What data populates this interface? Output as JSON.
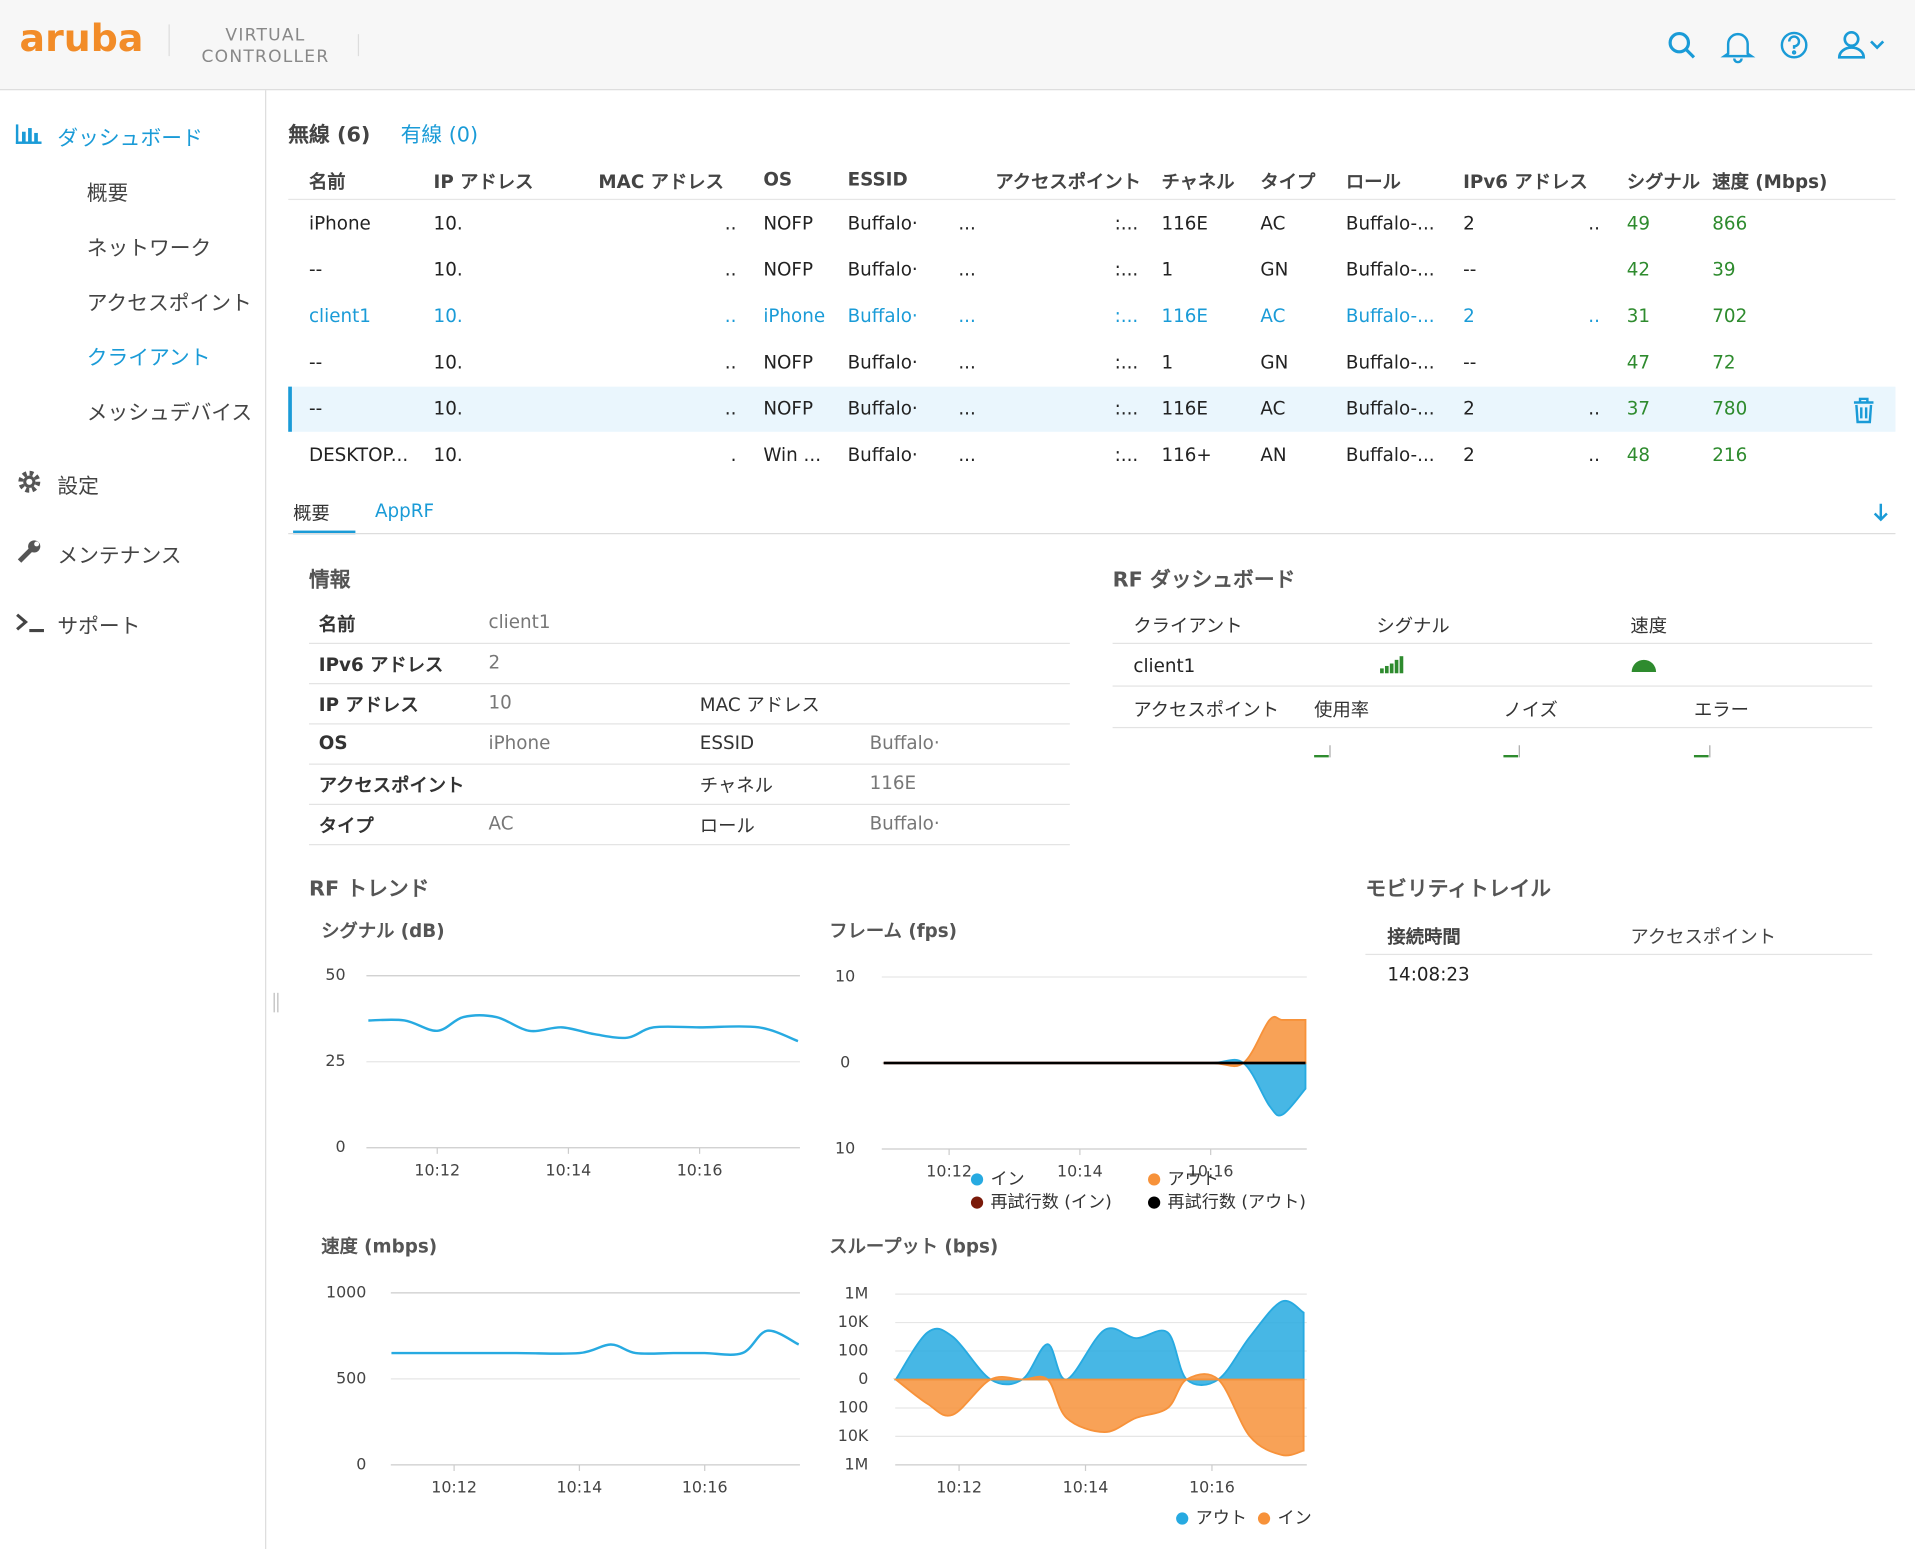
{
  "header": {
    "logo": "aruba",
    "product": [
      "VIRTUAL",
      "CONTROLLER"
    ]
  },
  "sidebar": {
    "dashboard": "ダッシュボード",
    "sub": [
      "概要",
      "ネットワーク",
      "アクセスポイント",
      "クライアント",
      "メッシュデバイス"
    ],
    "active_sub": 3,
    "others": [
      "設定",
      "メンテナンス",
      "サポート"
    ]
  },
  "tabs": [
    "無線 (6)",
    "有線 (0)"
  ],
  "table": {
    "columns": [
      "名前",
      "IP アドレス",
      "MAC アドレス",
      "OS",
      "ESSID",
      "アクセスポイント",
      "チャネル",
      "タイプ",
      "ロール",
      "IPv6 アドレス",
      "シグナル",
      "速度 (Mbps)"
    ],
    "selected_row": 2,
    "rows": [
      [
        "iPhone",
        "10.",
        "..",
        "NOFP",
        [
          "Buffalo·",
          "..."
        ],
        ":...",
        "116E",
        "AC",
        "Buffalo-...",
        [
          "2",
          ".."
        ],
        "49",
        "866"
      ],
      [
        "--",
        "10.",
        "..",
        "NOFP",
        [
          "Buffalo·",
          "..."
        ],
        ":...",
        "1",
        "GN",
        "Buffalo-...",
        "--",
        "42",
        "39"
      ],
      [
        "client1",
        "10.",
        "..",
        "iPhone",
        [
          "Buffalo·",
          "..."
        ],
        ":...",
        "116E",
        "AC",
        "Buffalo-...",
        [
          "2",
          ".."
        ],
        "31",
        "702"
      ],
      [
        "--",
        "10.",
        "..",
        "NOFP",
        [
          "Buffalo·",
          "..."
        ],
        ":...",
        "1",
        "GN",
        "Buffalo-...",
        "--",
        "47",
        "72"
      ],
      [
        "--",
        "10.",
        "..",
        "NOFP",
        [
          "Buffalo·",
          "..."
        ],
        ":...",
        "116E",
        "AC",
        "Buffalo-...",
        [
          "2",
          ".."
        ],
        "37",
        "780"
      ],
      [
        "DESKTOP...",
        "10.",
        ".",
        "Win ...",
        [
          "Buffalo·",
          "..."
        ],
        ":...",
        "116+",
        "AN",
        "Buffalo-...",
        [
          "2",
          ".."
        ],
        "48",
        "216"
      ]
    ]
  },
  "subtabs": [
    "概要",
    "AppRF"
  ],
  "info": {
    "title": "情報",
    "rows": [
      [
        {
          "label": "名前",
          "value": "client1"
        }
      ],
      [
        {
          "label": "IPv6 アドレス",
          "value": "2"
        }
      ],
      [
        {
          "label": "IP アドレス",
          "value": "10"
        },
        {
          "label": "MAC アドレス"
        }
      ],
      [
        {
          "label": "OS",
          "value": "iPhone"
        },
        {
          "label": "ESSID",
          "value": "Buffalo·"
        }
      ],
      [
        {
          "label": "アクセスポイント"
        },
        {
          "label": "チャネル",
          "value": "116E"
        }
      ],
      [
        {
          "label": "タイプ",
          "value": "AC"
        },
        {
          "label": "ロール",
          "value": "Buffalo·"
        }
      ]
    ]
  },
  "rf_dashboard": {
    "title": "RF ダッシュボード",
    "headers": [
      "クライアント",
      "シグナル",
      "速度"
    ],
    "client": "client1",
    "ap_headers": [
      "アクセスポイント",
      "使用率",
      "ノイズ",
      "エラー"
    ]
  },
  "rf_trend": {
    "title": "RF トレンド"
  },
  "mobility": {
    "title": "モビリティトレイル",
    "headers": [
      "接続時間",
      "アクセスポイント"
    ],
    "rows": [
      [
        "14:08:23"
      ]
    ]
  },
  "chart_data": [
    {
      "type": "line",
      "title": "シグナル (dB)",
      "x": [
        10.95,
        11.5,
        12.0,
        12.4,
        12.9,
        13.4,
        13.9,
        14.4,
        14.9,
        15.3,
        16.0,
        16.9,
        17.5
      ],
      "series": [
        {
          "color": "#27aae1",
          "values": [
            37,
            37,
            34,
            38,
            38,
            34,
            35,
            33,
            32,
            35,
            35,
            35,
            31
          ]
        }
      ],
      "xlim": [
        10.92,
        17.53
      ],
      "xticks": [
        {
          "value": 12,
          "label": "10:12"
        },
        {
          "value": 14,
          "label": "10:14"
        },
        {
          "value": 16,
          "label": "10:16"
        }
      ],
      "ylim": [
        0,
        50
      ],
      "yticks": [
        0,
        25,
        50
      ],
      "grid": true
    },
    {
      "type": "area",
      "title": "フレーム (fps)",
      "x": [
        11.0,
        12.0,
        13.0,
        14.0,
        15.0,
        16.0,
        16.5,
        16.9,
        17.1,
        17.45
      ],
      "series": [
        {
          "name": "イン",
          "color": "#27aae1",
          "values": [
            0,
            0,
            0,
            0,
            0,
            0,
            0,
            -5,
            -6,
            -3
          ]
        },
        {
          "name": "アウト",
          "color": "#f7923a",
          "values": [
            0,
            0,
            0,
            0,
            0,
            0,
            0,
            5,
            5,
            5
          ]
        },
        {
          "name": "再試行数 (イン)",
          "color": "#7a1a0a",
          "type": "line",
          "values": [
            0,
            0,
            0,
            0,
            0,
            0,
            0,
            0,
            0,
            0
          ]
        },
        {
          "name": "再試行数 (アウト)",
          "color": "#000000",
          "type": "line",
          "values": [
            0,
            0,
            0,
            0,
            0,
            0,
            0,
            0,
            0,
            0
          ]
        }
      ],
      "xlim": [
        10.97,
        17.47
      ],
      "xticks": [
        {
          "value": 12,
          "label": "10:12"
        },
        {
          "value": 14,
          "label": "10:14"
        },
        {
          "value": 16,
          "label": "10:16"
        }
      ],
      "ylim": [
        -10,
        10
      ],
      "yticks": [
        10,
        0,
        {
          "value": -10,
          "label": "10"
        }
      ],
      "grid": true,
      "legend": true
    },
    {
      "type": "line",
      "title": "速度 (mbps)",
      "x": [
        11.0,
        12.0,
        13.0,
        14.0,
        14.5,
        14.9,
        15.5,
        16.0,
        16.6,
        17.0,
        17.5
      ],
      "series": [
        {
          "color": "#27aae1",
          "values": [
            650,
            650,
            650,
            650,
            700,
            650,
            650,
            650,
            650,
            780,
            700
          ]
        }
      ],
      "xlim": [
        10.99,
        17.52
      ],
      "xticks": [
        {
          "value": 12,
          "label": "10:12"
        },
        {
          "value": 14,
          "label": "10:14"
        },
        {
          "value": 16,
          "label": "10:16"
        }
      ],
      "ylim": [
        0,
        1000
      ],
      "yticks": [
        0,
        500,
        1000
      ],
      "grid": true
    },
    {
      "type": "area",
      "title": "スループット (bps)",
      "scale": "symlog",
      "x": [
        11.0,
        11.5,
        11.9,
        12.5,
        13.0,
        13.4,
        13.7,
        14.3,
        14.8,
        15.3,
        15.6,
        16.1,
        16.6,
        17.1,
        17.45
      ],
      "series": [
        {
          "name": "アウト",
          "color": "#27aae1",
          "values": [
            0,
            2000,
            1000,
            0,
            0,
            300,
            0,
            3000,
            800,
            2000,
            0,
            0,
            1000,
            300000,
            50000
          ]
        },
        {
          "name": "イン",
          "color": "#f7923a",
          "values": [
            0,
            -50,
            -300,
            0,
            0,
            0,
            -500,
            -5000,
            -500,
            -100,
            0,
            0,
            -10000,
            -200000,
            -100000
          ]
        }
      ],
      "xlim": [
        10.99,
        17.5
      ],
      "xticks": [
        {
          "value": 12,
          "label": "10:12"
        },
        {
          "value": 14,
          "label": "10:14"
        },
        {
          "value": 16,
          "label": "10:16"
        }
      ],
      "ylim": [
        -1000000,
        1000000
      ],
      "yticks": [
        {
          "value": 1000000,
          "label": "1M"
        },
        {
          "value": 10000,
          "label": "10K"
        },
        100,
        0,
        {
          "value": -100,
          "label": "100"
        },
        {
          "value": -10000,
          "label": "10K"
        },
        {
          "value": -1000000,
          "label": "1M"
        }
      ],
      "grid": true,
      "legend": true
    }
  ]
}
